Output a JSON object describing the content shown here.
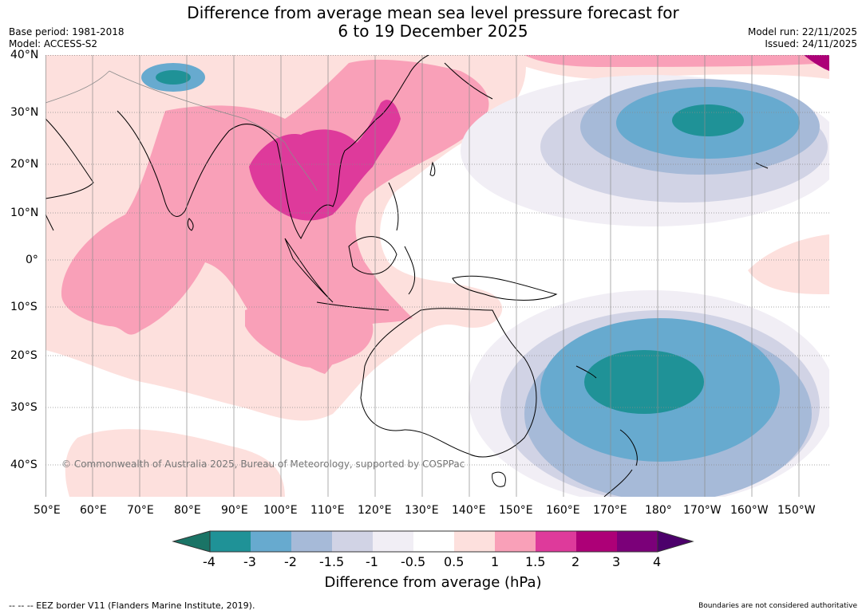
{
  "header": {
    "title_line1": "Difference from average mean sea level pressure forecast for",
    "title_line2": "6 to 19 December 2025",
    "base_period": "Base period: 1981-2018",
    "model": "Model: ACCESS-S2",
    "model_run": "Model run: 22/11/2025",
    "issued": "Issued: 24/11/2025"
  },
  "map": {
    "lat_labels": [
      "40°N",
      "30°N",
      "20°N",
      "10°N",
      "0°",
      "10°S",
      "20°S",
      "30°S",
      "40°S"
    ],
    "lon_labels": [
      "50°E",
      "60°E",
      "70°E",
      "80°E",
      "90°E",
      "100°E",
      "110°E",
      "120°E",
      "130°E",
      "140°E",
      "150°E",
      "160°E",
      "170°E",
      "180°",
      "170°W",
      "160°W",
      "150°W"
    ],
    "copyright": "© Commonwealth of Australia 2025, Bureau of Meteorology, supported by COSPPac",
    "colors": {
      "ocean": "#ffffff",
      "land_outline": "#000000",
      "border_gray": "#8c8c8c",
      "gridline": "#8c8c8c"
    }
  },
  "colorbar": {
    "ticks": [
      "-4",
      "-3",
      "-2",
      "-1.5",
      "-1",
      "-0.5",
      "0.5",
      "1",
      "1.5",
      "2",
      "3",
      "4"
    ],
    "label": "Difference from average (hPa)",
    "colors": [
      "#1a7466",
      "#1f9297",
      "#67aacf",
      "#a6bad8",
      "#d1d3e5",
      "#f1eef5",
      "#ffffff",
      "#fde0dd",
      "#f9a0b8",
      "#de3a9b",
      "#ad0077",
      "#7b0079",
      "#4c006b"
    ]
  },
  "footer": {
    "eez_note": "--  --  -- EEZ border V11 (Flanders Marine Institute, 2019).",
    "boundaries_note": "Boundaries are not considered authoritative"
  }
}
